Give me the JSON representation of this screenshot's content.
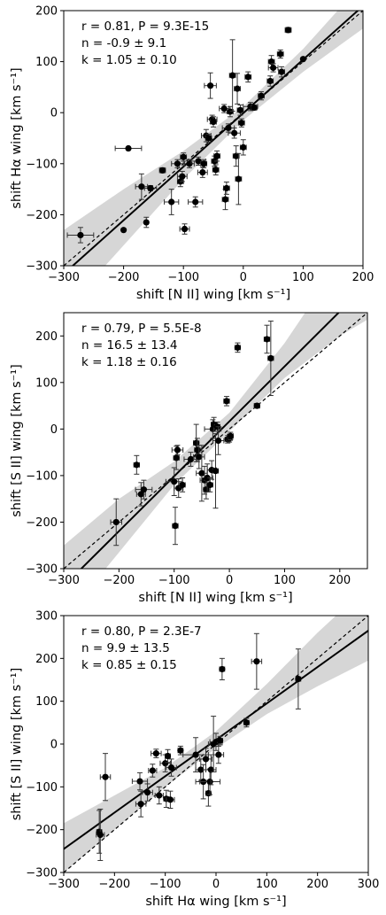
{
  "chart_data": [
    {
      "type": "scatter",
      "xlabel": "shift [N II] wing [km s⁻¹]",
      "ylabel": "shift Hα  wing [km s⁻¹]",
      "xlim": [
        -300,
        200
      ],
      "ylim": [
        -300,
        200
      ],
      "xticks": [
        -300,
        -200,
        -100,
        0,
        100,
        200
      ],
      "yticks": [
        -300,
        -200,
        -100,
        0,
        100,
        200
      ],
      "annotations": [
        "r = 0.81, P = 9.3E-15",
        "n = -0.9 ± 9.1",
        "k = 1.05 ± 0.10"
      ],
      "fit": {
        "slope": 1.05,
        "intercept": -0.9,
        "band": [
          [
            -300,
            -390,
            -230
          ],
          [
            -200,
            -260,
            -150
          ],
          [
            -100,
            -130,
            -75
          ],
          [
            0,
            -15,
            12
          ],
          [
            100,
            80,
            125
          ],
          [
            200,
            165,
            255
          ]
        ]
      },
      "identity_line": true,
      "points": [
        {
          "x": -272,
          "y": -240,
          "xerr": 22,
          "yerr": 15
        },
        {
          "x": -200,
          "y": -230,
          "xerr": 0,
          "yerr": 0
        },
        {
          "x": -192,
          "y": -70,
          "xerr": 22,
          "yerr": 0
        },
        {
          "x": -170,
          "y": -145,
          "xerr": 10,
          "yerr": 25
        },
        {
          "x": -162,
          "y": -215,
          "xerr": 0,
          "yerr": 10
        },
        {
          "x": -155,
          "y": -148,
          "xerr": 10,
          "yerr": 5
        },
        {
          "x": -135,
          "y": -113,
          "xerr": 5,
          "yerr": 5
        },
        {
          "x": -120,
          "y": -175,
          "xerr": 12,
          "yerr": 25
        },
        {
          "x": -110,
          "y": -100,
          "xerr": 10,
          "yerr": 8
        },
        {
          "x": -105,
          "y": -135,
          "xerr": 5,
          "yerr": 10
        },
        {
          "x": -102,
          "y": -125,
          "xerr": 8,
          "yerr": 10
        },
        {
          "x": -100,
          "y": -87,
          "xerr": 5,
          "yerr": 8
        },
        {
          "x": -98,
          "y": -228,
          "xerr": 8,
          "yerr": 10
        },
        {
          "x": -90,
          "y": -100,
          "xerr": 8,
          "yerr": 8
        },
        {
          "x": -80,
          "y": -175,
          "xerr": 12,
          "yerr": 10
        },
        {
          "x": -75,
          "y": -95,
          "xerr": 12,
          "yerr": 8
        },
        {
          "x": -68,
          "y": -117,
          "xerr": 8,
          "yerr": 10
        },
        {
          "x": -66,
          "y": -100,
          "xerr": 5,
          "yerr": 8
        },
        {
          "x": -62,
          "y": -45,
          "xerr": 8,
          "yerr": 12
        },
        {
          "x": -58,
          "y": -50,
          "xerr": 5,
          "yerr": 8
        },
        {
          "x": -55,
          "y": 53,
          "xerr": 10,
          "yerr": 25
        },
        {
          "x": -52,
          "y": -13,
          "xerr": 8,
          "yerr": 8
        },
        {
          "x": -50,
          "y": -18,
          "xerr": 5,
          "yerr": 10
        },
        {
          "x": -48,
          "y": -95,
          "xerr": 5,
          "yerr": 10
        },
        {
          "x": -46,
          "y": -112,
          "xerr": 5,
          "yerr": 10
        },
        {
          "x": -44,
          "y": -85,
          "xerr": 5,
          "yerr": 10
        },
        {
          "x": -32,
          "y": 8,
          "xerr": 8,
          "yerr": 8
        },
        {
          "x": -30,
          "y": -170,
          "xerr": 5,
          "yerr": 20
        },
        {
          "x": -28,
          "y": -148,
          "xerr": 5,
          "yerr": 12
        },
        {
          "x": -25,
          "y": -30,
          "xerr": 10,
          "yerr": 8
        },
        {
          "x": -22,
          "y": 2,
          "xerr": 5,
          "yerr": 10
        },
        {
          "x": -18,
          "y": 73,
          "xerr": 5,
          "yerr": 70
        },
        {
          "x": -15,
          "y": -40,
          "xerr": 10,
          "yerr": 10
        },
        {
          "x": -12,
          "y": -85,
          "xerr": 5,
          "yerr": 20
        },
        {
          "x": -10,
          "y": 47,
          "xerr": 5,
          "yerr": 30
        },
        {
          "x": -8,
          "y": -130,
          "xerr": 5,
          "yerr": 50
        },
        {
          "x": -5,
          "y": 5,
          "xerr": 5,
          "yerr": 10
        },
        {
          "x": -3,
          "y": -20,
          "xerr": 5,
          "yerr": 8
        },
        {
          "x": 0,
          "y": -68,
          "xerr": 5,
          "yerr": 15
        },
        {
          "x": 8,
          "y": 70,
          "xerr": 5,
          "yerr": 10
        },
        {
          "x": 12,
          "y": 12,
          "xerr": 12,
          "yerr": 8
        },
        {
          "x": 18,
          "y": 10,
          "xerr": 5,
          "yerr": 5
        },
        {
          "x": 30,
          "y": 33,
          "xerr": 5,
          "yerr": 8
        },
        {
          "x": 45,
          "y": 62,
          "xerr": 5,
          "yerr": 10
        },
        {
          "x": 47,
          "y": 100,
          "xerr": 5,
          "yerr": 12
        },
        {
          "x": 50,
          "y": 88,
          "xerr": 8,
          "yerr": 8
        },
        {
          "x": 62,
          "y": 115,
          "xerr": 5,
          "yerr": 8
        },
        {
          "x": 64,
          "y": 80,
          "xerr": 5,
          "yerr": 10
        },
        {
          "x": 75,
          "y": 162,
          "xerr": 5,
          "yerr": 5
        },
        {
          "x": 100,
          "y": 105,
          "xerr": 0,
          "yerr": 0
        }
      ]
    },
    {
      "type": "scatter",
      "xlabel": "shift [N II] wing [km s⁻¹]",
      "ylabel": "shift [S II]  wing [km s⁻¹]",
      "xlim": [
        -300,
        250
      ],
      "ylim": [
        -300,
        250
      ],
      "xticks": [
        -300,
        -200,
        -100,
        0,
        100,
        200
      ],
      "yticks": [
        -300,
        -200,
        -100,
        0,
        100,
        200
      ],
      "annotations": [
        "r = 0.79, P = 5.5E-8",
        "n = 16.5 ± 13.4",
        "k = 1.18 ± 0.16"
      ],
      "fit": {
        "slope": 1.18,
        "intercept": 16.5,
        "band": [
          [
            -300,
            -410,
            -250
          ],
          [
            -200,
            -265,
            -150
          ],
          [
            -100,
            -120,
            -70
          ],
          [
            0,
            -5,
            35
          ],
          [
            100,
            110,
            185
          ],
          [
            200,
            200,
            360
          ],
          [
            250,
            235,
            440
          ]
        ]
      },
      "identity_line": true,
      "points": [
        {
          "x": -205,
          "y": -200,
          "xerr": 10,
          "yerr": 50
        },
        {
          "x": -168,
          "y": -77,
          "xerr": 5,
          "yerr": 20
        },
        {
          "x": -160,
          "y": -140,
          "xerr": 8,
          "yerr": 25
        },
        {
          "x": -155,
          "y": -130,
          "xerr": 15,
          "yerr": 20
        },
        {
          "x": -100,
          "y": -113,
          "xerr": 15,
          "yerr": 30
        },
        {
          "x": -98,
          "y": -208,
          "xerr": 5,
          "yerr": 40
        },
        {
          "x": -96,
          "y": -62,
          "xerr": 5,
          "yerr": 25
        },
        {
          "x": -94,
          "y": -45,
          "xerr": 10,
          "yerr": 10
        },
        {
          "x": -92,
          "y": -127,
          "xerr": 8,
          "yerr": 20
        },
        {
          "x": -85,
          "y": -120,
          "xerr": 5,
          "yerr": 15
        },
        {
          "x": -70,
          "y": -65,
          "xerr": 12,
          "yerr": 15
        },
        {
          "x": -60,
          "y": -30,
          "xerr": 5,
          "yerr": 40
        },
        {
          "x": -58,
          "y": -45,
          "xerr": 5,
          "yerr": 25
        },
        {
          "x": -55,
          "y": -60,
          "xerr": 10,
          "yerr": 25
        },
        {
          "x": -50,
          "y": -95,
          "xerr": 10,
          "yerr": 60
        },
        {
          "x": -45,
          "y": -110,
          "xerr": 8,
          "yerr": 30
        },
        {
          "x": -42,
          "y": -130,
          "xerr": 5,
          "yerr": 20
        },
        {
          "x": -40,
          "y": -105,
          "xerr": 10,
          "yerr": 30
        },
        {
          "x": -35,
          "y": -120,
          "xerr": 5,
          "yerr": 15
        },
        {
          "x": -32,
          "y": -88,
          "xerr": 8,
          "yerr": 20
        },
        {
          "x": -30,
          "y": 0,
          "xerr": 15,
          "yerr": 20
        },
        {
          "x": -28,
          "y": 10,
          "xerr": 5,
          "yerr": 15
        },
        {
          "x": -25,
          "y": -90,
          "xerr": 5,
          "yerr": 80
        },
        {
          "x": -22,
          "y": 5,
          "xerr": 5,
          "yerr": 10
        },
        {
          "x": -20,
          "y": -25,
          "xerr": 10,
          "yerr": 30
        },
        {
          "x": -5,
          "y": 60,
          "xerr": 5,
          "yerr": 10
        },
        {
          "x": -3,
          "y": -22,
          "xerr": 5,
          "yerr": 8
        },
        {
          "x": 0,
          "y": -20,
          "xerr": 5,
          "yerr": 8
        },
        {
          "x": 2,
          "y": -15,
          "xerr": 5,
          "yerr": 8
        },
        {
          "x": 50,
          "y": 50,
          "xerr": 5,
          "yerr": 5
        },
        {
          "x": 15,
          "y": 175,
          "xerr": 5,
          "yerr": 10
        },
        {
          "x": 68,
          "y": 193,
          "xerr": 5,
          "yerr": 30
        },
        {
          "x": 75,
          "y": 152,
          "xerr": 5,
          "yerr": 80
        }
      ]
    },
    {
      "type": "scatter",
      "xlabel": "shift Hα wing [km s⁻¹]",
      "ylabel": "shift [S II]  wing [km s⁻¹]",
      "xlim": [
        -300,
        300
      ],
      "ylim": [
        -300,
        300
      ],
      "xticks": [
        -300,
        -200,
        -100,
        0,
        100,
        200,
        300
      ],
      "yticks": [
        -300,
        -200,
        -100,
        0,
        100,
        200,
        300
      ],
      "annotations": [
        "r = 0.80, P = 2.3E-7",
        "n = 9.9 ± 13.5",
        "k = 0.85 ± 0.15"
      ],
      "fit": {
        "slope": 0.85,
        "intercept": 9.9,
        "band": [
          [
            -300,
            -300,
            -185
          ],
          [
            -200,
            -200,
            -120
          ],
          [
            -100,
            -100,
            -55
          ],
          [
            0,
            -10,
            30
          ],
          [
            100,
            70,
            140
          ],
          [
            200,
            135,
            260
          ],
          [
            300,
            195,
            370
          ]
        ]
      },
      "identity_line": true,
      "points": [
        {
          "x": -230,
          "y": -205,
          "xerr": 5,
          "yerr": 50
        },
        {
          "x": -228,
          "y": -212,
          "xerr": 8,
          "yerr": 60
        },
        {
          "x": -218,
          "y": -77,
          "xerr": 10,
          "yerr": 55
        },
        {
          "x": -150,
          "y": -87,
          "xerr": 15,
          "yerr": 20
        },
        {
          "x": -148,
          "y": -140,
          "xerr": 10,
          "yerr": 30
        },
        {
          "x": -135,
          "y": -113,
          "xerr": 10,
          "yerr": 20
        },
        {
          "x": -125,
          "y": -62,
          "xerr": 8,
          "yerr": 15
        },
        {
          "x": -118,
          "y": -22,
          "xerr": 10,
          "yerr": 10
        },
        {
          "x": -112,
          "y": -120,
          "xerr": 8,
          "yerr": 20
        },
        {
          "x": -100,
          "y": -45,
          "xerr": 10,
          "yerr": 20
        },
        {
          "x": -98,
          "y": -128,
          "xerr": 5,
          "yerr": 20
        },
        {
          "x": -95,
          "y": -28,
          "xerr": 5,
          "yerr": 15
        },
        {
          "x": -90,
          "y": -130,
          "xerr": 8,
          "yerr": 20
        },
        {
          "x": -88,
          "y": -55,
          "xerr": 10,
          "yerr": 20
        },
        {
          "x": -70,
          "y": -15,
          "xerr": 5,
          "yerr": 10
        },
        {
          "x": -40,
          "y": -25,
          "xerr": 25,
          "yerr": 40
        },
        {
          "x": -30,
          "y": -60,
          "xerr": 10,
          "yerr": 25
        },
        {
          "x": -25,
          "y": -88,
          "xerr": 15,
          "yerr": 40
        },
        {
          "x": -20,
          "y": -35,
          "xerr": 12,
          "yerr": 25
        },
        {
          "x": -15,
          "y": -115,
          "xerr": 5,
          "yerr": 30
        },
        {
          "x": -12,
          "y": -88,
          "xerr": 20,
          "yerr": 30
        },
        {
          "x": -10,
          "y": -60,
          "xerr": 10,
          "yerr": 35
        },
        {
          "x": -5,
          "y": 0,
          "xerr": 10,
          "yerr": 65
        },
        {
          "x": 0,
          "y": 5,
          "xerr": 12,
          "yerr": 20
        },
        {
          "x": 5,
          "y": -25,
          "xerr": 10,
          "yerr": 20
        },
        {
          "x": 8,
          "y": 8,
          "xerr": 5,
          "yerr": 10
        },
        {
          "x": 12,
          "y": 175,
          "xerr": 5,
          "yerr": 25
        },
        {
          "x": 60,
          "y": 50,
          "xerr": 5,
          "yerr": 10
        },
        {
          "x": 80,
          "y": 193,
          "xerr": 10,
          "yerr": 65
        },
        {
          "x": 162,
          "y": 152,
          "xerr": 5,
          "yerr": 70
        }
      ]
    }
  ]
}
